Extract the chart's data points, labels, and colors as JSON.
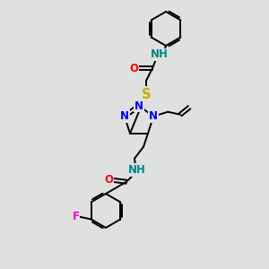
{
  "bg_color": "#dfe0e0",
  "atom_colors": {
    "N": "#0000ee",
    "O": "#ff0000",
    "S": "#ccaa00",
    "F": "#ff00cc",
    "H_color": "#008888",
    "C": "#000000"
  },
  "bond_color": "#000000",
  "font_size_atom": 8.5,
  "fig_size": [
    3.0,
    3.0
  ],
  "dpi": 100
}
